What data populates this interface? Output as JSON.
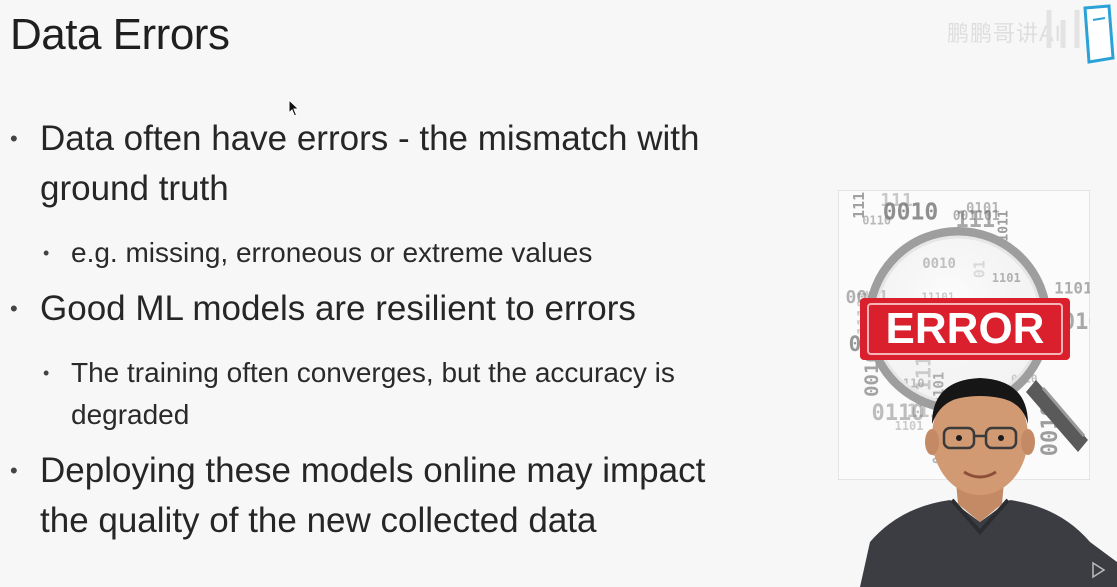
{
  "slide": {
    "title": "Data Errors",
    "bullets": [
      {
        "text": "Data often have errors - the mismatch with ground truth",
        "sub": [
          "e.g. missing, erroneous or extreme values"
        ]
      },
      {
        "text": "Good ML models are resilient to errors",
        "sub": [
          "The training often converges, but the accuracy is degraded"
        ]
      },
      {
        "text": "Deploying these models online may impact the quality of the new collected data",
        "sub": []
      }
    ]
  },
  "illustration": {
    "label": "ERROR",
    "binary_strings": [
      "0010",
      "111",
      "11101",
      "0110",
      "0010",
      "0101",
      "1101",
      "0001",
      "11101",
      "0010",
      "0110",
      "111",
      "1101",
      "0110",
      "1011",
      "0010",
      "0101",
      "11101",
      "0001",
      "010",
      "0110",
      "001010",
      "1101",
      "0110",
      "001101",
      "0010",
      "111",
      "11101",
      "0101",
      "01",
      "0110"
    ]
  },
  "watermark": {
    "text": "鹏鹏哥讲AI"
  },
  "colors": {
    "error_red": "#d9202c",
    "background": "#f7f7f7",
    "watermark_blue": "#2aa2d8"
  },
  "icons": {
    "cursor": "mouse-cursor-icon",
    "play": "play-icon",
    "logo": "bilibili-logo-icon"
  }
}
